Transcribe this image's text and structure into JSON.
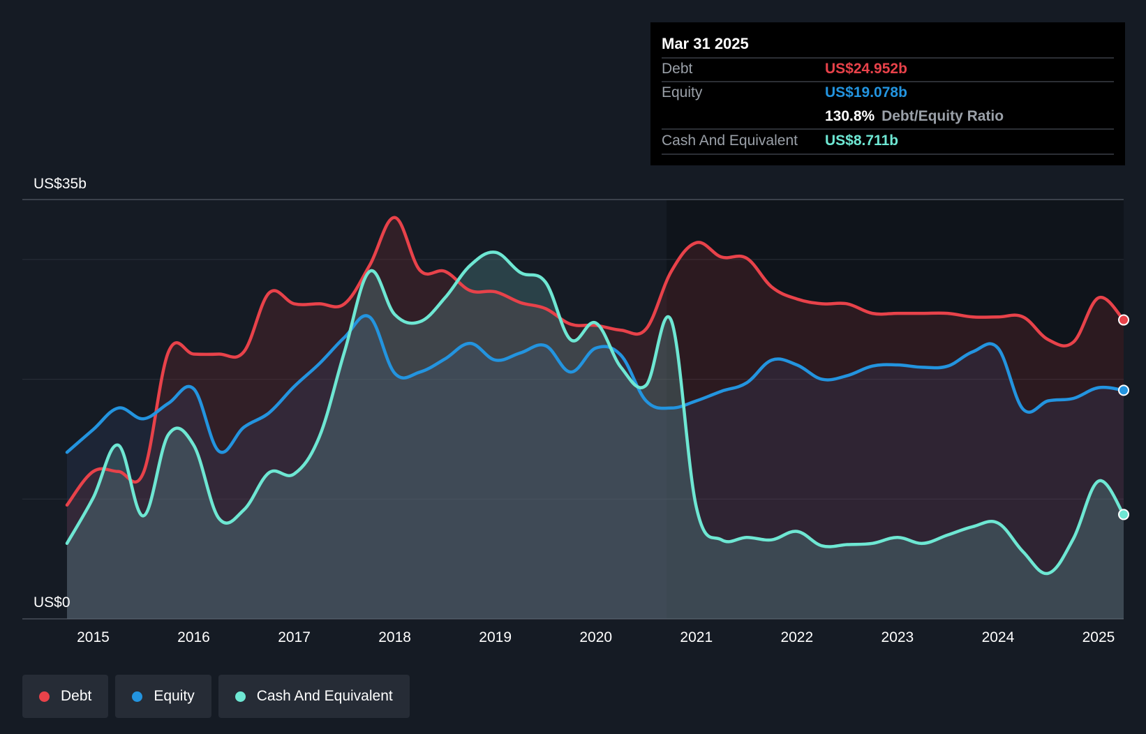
{
  "colors": {
    "debt": "#e8424a",
    "equity": "#2394df",
    "cash": "#6ee7d3",
    "background": "#151b24"
  },
  "tooltip": {
    "date": "Mar 31 2025",
    "debt_label": "Debt",
    "debt_value": "US$24.952b",
    "equity_label": "Equity",
    "equity_value": "US$19.078b",
    "ratio_value": "130.8%",
    "ratio_label": "Debt/Equity Ratio",
    "cash_label": "Cash And Equivalent",
    "cash_value": "US$8.711b"
  },
  "legend": {
    "items": [
      {
        "key": "debt",
        "label": "Debt"
      },
      {
        "key": "equity",
        "label": "Equity"
      },
      {
        "key": "cash",
        "label": "Cash And Equivalent"
      }
    ]
  },
  "chart_data": {
    "type": "area",
    "y_labels": [
      "US$35b",
      "US$0"
    ],
    "ylim": [
      0,
      35
    ],
    "xlim": [
      2014.74,
      2025.25
    ],
    "x_ticks": [
      {
        "value": 2015,
        "label": "2015"
      },
      {
        "value": 2016,
        "label": "2016"
      },
      {
        "value": 2017,
        "label": "2017"
      },
      {
        "value": 2018,
        "label": "2018"
      },
      {
        "value": 2019,
        "label": "2019"
      },
      {
        "value": 2020,
        "label": "2020"
      },
      {
        "value": 2021,
        "label": "2021"
      },
      {
        "value": 2022,
        "label": "2022"
      },
      {
        "value": 2023,
        "label": "2023"
      },
      {
        "value": 2024,
        "label": "2024"
      },
      {
        "value": 2025,
        "label": "2025"
      }
    ],
    "gridlines": [
      0,
      10,
      20,
      30,
      35
    ],
    "series": [
      {
        "key": "debt",
        "name": "Debt",
        "points": [
          [
            2014.74,
            9.5
          ],
          [
            2015.0,
            12.3
          ],
          [
            2015.25,
            12.3
          ],
          [
            2015.5,
            12.2
          ],
          [
            2015.75,
            22.3
          ],
          [
            2016.0,
            22.1
          ],
          [
            2016.25,
            22.1
          ],
          [
            2016.5,
            22.3
          ],
          [
            2016.75,
            27.2
          ],
          [
            2017.0,
            26.3
          ],
          [
            2017.25,
            26.3
          ],
          [
            2017.5,
            26.3
          ],
          [
            2017.75,
            29.5
          ],
          [
            2018.0,
            33.5
          ],
          [
            2018.25,
            29.1
          ],
          [
            2018.5,
            29.0
          ],
          [
            2018.75,
            27.4
          ],
          [
            2019.0,
            27.3
          ],
          [
            2019.25,
            26.4
          ],
          [
            2019.5,
            25.9
          ],
          [
            2019.75,
            24.6
          ],
          [
            2020.0,
            24.5
          ],
          [
            2020.25,
            24.1
          ],
          [
            2020.5,
            24.2
          ],
          [
            2020.75,
            29.0
          ],
          [
            2021.0,
            31.4
          ],
          [
            2021.25,
            30.2
          ],
          [
            2021.5,
            30.1
          ],
          [
            2021.75,
            27.7
          ],
          [
            2022.0,
            26.7
          ],
          [
            2022.25,
            26.3
          ],
          [
            2022.5,
            26.3
          ],
          [
            2022.75,
            25.5
          ],
          [
            2023.0,
            25.5
          ],
          [
            2023.25,
            25.5
          ],
          [
            2023.5,
            25.5
          ],
          [
            2023.75,
            25.2
          ],
          [
            2024.0,
            25.2
          ],
          [
            2024.25,
            25.2
          ],
          [
            2024.5,
            23.3
          ],
          [
            2024.75,
            23.1
          ],
          [
            2025.0,
            26.8
          ],
          [
            2025.25,
            24.952
          ]
        ]
      },
      {
        "key": "equity",
        "name": "Equity",
        "points": [
          [
            2014.74,
            13.9
          ],
          [
            2015.0,
            15.8
          ],
          [
            2015.25,
            17.6
          ],
          [
            2015.5,
            16.7
          ],
          [
            2015.75,
            18.0
          ],
          [
            2016.0,
            19.2
          ],
          [
            2016.25,
            14.0
          ],
          [
            2016.5,
            16.0
          ],
          [
            2016.75,
            17.2
          ],
          [
            2017.0,
            19.4
          ],
          [
            2017.25,
            21.3
          ],
          [
            2017.5,
            23.5
          ],
          [
            2017.75,
            25.2
          ],
          [
            2018.0,
            20.5
          ],
          [
            2018.25,
            20.6
          ],
          [
            2018.5,
            21.7
          ],
          [
            2018.75,
            23.0
          ],
          [
            2019.0,
            21.6
          ],
          [
            2019.25,
            22.2
          ],
          [
            2019.5,
            22.8
          ],
          [
            2019.75,
            20.6
          ],
          [
            2020.0,
            22.6
          ],
          [
            2020.25,
            22.0
          ],
          [
            2020.5,
            18.2
          ],
          [
            2020.75,
            17.6
          ],
          [
            2021.0,
            18.2
          ],
          [
            2021.25,
            19.0
          ],
          [
            2021.5,
            19.7
          ],
          [
            2021.75,
            21.6
          ],
          [
            2022.0,
            21.2
          ],
          [
            2022.25,
            20.0
          ],
          [
            2022.5,
            20.3
          ],
          [
            2022.75,
            21.1
          ],
          [
            2023.0,
            21.2
          ],
          [
            2023.25,
            21.0
          ],
          [
            2023.5,
            21.1
          ],
          [
            2023.75,
            22.3
          ],
          [
            2024.0,
            22.6
          ],
          [
            2024.25,
            17.5
          ],
          [
            2024.5,
            18.2
          ],
          [
            2024.75,
            18.4
          ],
          [
            2025.0,
            19.3
          ],
          [
            2025.25,
            19.078
          ]
        ]
      },
      {
        "key": "cash",
        "name": "Cash And Equivalent",
        "points": [
          [
            2014.74,
            6.3
          ],
          [
            2015.0,
            10.1
          ],
          [
            2015.25,
            14.5
          ],
          [
            2015.5,
            8.6
          ],
          [
            2015.75,
            15.4
          ],
          [
            2016.0,
            14.5
          ],
          [
            2016.25,
            8.4
          ],
          [
            2016.5,
            9.1
          ],
          [
            2016.75,
            12.2
          ],
          [
            2017.0,
            12.1
          ],
          [
            2017.25,
            15.2
          ],
          [
            2017.5,
            22.3
          ],
          [
            2017.75,
            29.0
          ],
          [
            2018.0,
            25.4
          ],
          [
            2018.25,
            24.8
          ],
          [
            2018.5,
            26.8
          ],
          [
            2018.75,
            29.5
          ],
          [
            2019.0,
            30.6
          ],
          [
            2019.25,
            28.9
          ],
          [
            2019.5,
            28.1
          ],
          [
            2019.75,
            23.3
          ],
          [
            2020.0,
            24.7
          ],
          [
            2020.25,
            21.0
          ],
          [
            2020.5,
            19.5
          ],
          [
            2020.75,
            24.9
          ],
          [
            2021.0,
            9.3
          ],
          [
            2021.25,
            6.6
          ],
          [
            2021.5,
            6.8
          ],
          [
            2021.75,
            6.6
          ],
          [
            2022.0,
            7.3
          ],
          [
            2022.25,
            6.1
          ],
          [
            2022.5,
            6.2
          ],
          [
            2022.75,
            6.3
          ],
          [
            2023.0,
            6.8
          ],
          [
            2023.25,
            6.3
          ],
          [
            2023.5,
            7.0
          ],
          [
            2023.75,
            7.7
          ],
          [
            2024.0,
            8.0
          ],
          [
            2024.25,
            5.6
          ],
          [
            2024.5,
            3.8
          ],
          [
            2024.75,
            6.7
          ],
          [
            2025.0,
            11.5
          ],
          [
            2025.25,
            8.711
          ]
        ]
      }
    ]
  }
}
